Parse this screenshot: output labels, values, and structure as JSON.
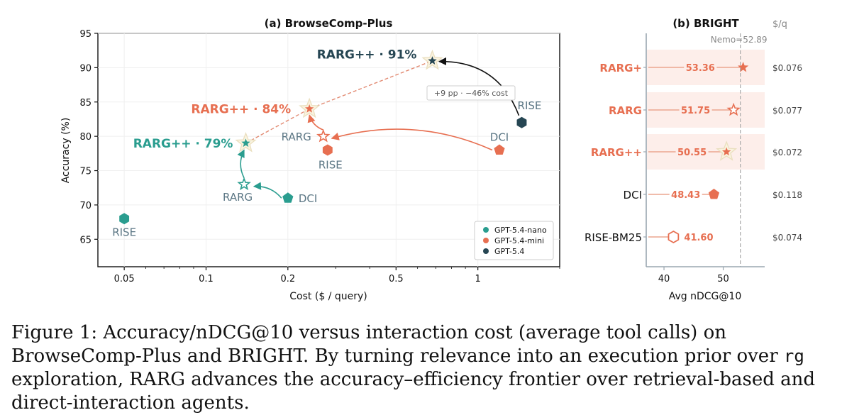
{
  "colors": {
    "nano": "#2a9d8f",
    "mini": "#e76f51",
    "full": "#264653",
    "label_gray": "#5b7684",
    "highlight_bg": "#fdeeea"
  },
  "chart_data": [
    {
      "type": "scatter",
      "title": "(a) BrowseComp-Plus",
      "xlabel": "Cost ($ / query)",
      "ylabel": "Accuracy (%)",
      "xscale": "log",
      "xlim": [
        0.04,
        2.0
      ],
      "ylim": [
        61,
        95
      ],
      "xticks": [
        0.05,
        0.1,
        0.2,
        0.5,
        1
      ],
      "xtick_labels": [
        "0.05",
        "0.1",
        "0.2",
        "0.5",
        "1"
      ],
      "yticks": [
        65,
        70,
        75,
        80,
        85,
        90,
        95
      ],
      "legend": {
        "placement": "lower-right",
        "entries": [
          {
            "label": "GPT-5.4-nano",
            "color": "#2a9d8f"
          },
          {
            "label": "GPT-5.4-mini",
            "color": "#e76f51"
          },
          {
            "label": "GPT-5.4",
            "color": "#264653"
          }
        ]
      },
      "points": [
        {
          "group": "nano",
          "method": "RISE",
          "x": 0.05,
          "y": 68,
          "marker": "hexagon",
          "label": "RISE",
          "color": "#2a9d8f"
        },
        {
          "group": "nano",
          "method": "DCI",
          "x": 0.2,
          "y": 71,
          "marker": "pentagon",
          "label": "DCI",
          "color": "#2a9d8f"
        },
        {
          "group": "nano",
          "method": "RARG",
          "x": 0.138,
          "y": 73,
          "marker": "star-open",
          "label": "RARG",
          "color": "#2a9d8f"
        },
        {
          "group": "nano",
          "method": "RARG++",
          "x": 0.14,
          "y": 79,
          "marker": "star-halo",
          "label": "RARG++ · 79%",
          "color": "#2a9d8f"
        },
        {
          "group": "mini",
          "method": "RISE",
          "x": 0.28,
          "y": 78,
          "marker": "hexagon",
          "label": "RISE",
          "color": "#e76f51"
        },
        {
          "group": "mini",
          "method": "DCI",
          "x": 1.2,
          "y": 78,
          "marker": "pentagon",
          "label": "DCI",
          "color": "#e76f51"
        },
        {
          "group": "mini",
          "method": "RARG",
          "x": 0.27,
          "y": 80,
          "marker": "star-open",
          "label": "RARG",
          "color": "#e76f51"
        },
        {
          "group": "mini",
          "method": "RARG++",
          "x": 0.24,
          "y": 84,
          "marker": "star-halo",
          "label": "RARG++ · 84%",
          "color": "#e76f51"
        },
        {
          "group": "full",
          "method": "RISE",
          "x": 1.45,
          "y": 82,
          "marker": "hexagon",
          "label": "RISE",
          "color": "#264653"
        },
        {
          "group": "full",
          "method": "RARG++",
          "x": 0.68,
          "y": 91,
          "marker": "star-halo",
          "label": "RARG++ · 91%",
          "color": "#264653"
        }
      ],
      "frontier": [
        [
          0.14,
          79
        ],
        [
          0.24,
          84
        ],
        [
          0.68,
          91
        ]
      ],
      "arrows": [
        {
          "from": [
            0.2,
            71
          ],
          "to": [
            0.15,
            72.7
          ],
          "color": "#2a9d8f"
        },
        {
          "from": [
            0.138,
            73
          ],
          "to": [
            0.138,
            78
          ],
          "color": "#2a9d8f"
        },
        {
          "from": [
            1.2,
            78
          ],
          "to": [
            0.29,
            79.7
          ],
          "color": "#e76f51"
        },
        {
          "from": [
            0.27,
            80
          ],
          "to": [
            0.24,
            83.1
          ],
          "color": "#e76f51"
        },
        {
          "from": [
            1.45,
            82
          ],
          "to": [
            0.72,
            90.9
          ],
          "color": "#111111"
        }
      ],
      "annotation": "+9 pp · −46% cost"
    },
    {
      "type": "dot",
      "title": "(b) BRIGHT",
      "xlabel": "Avg nDCG@10",
      "xlim": [
        37,
        57
      ],
      "xticks": [
        40,
        50
      ],
      "side_header": "$/q",
      "reference": {
        "label": "Nemo=52.89",
        "value": 52.89
      },
      "rows": [
        {
          "method": "RARG+",
          "value": 53.36,
          "value_label": "53.36",
          "cost": "$0.076",
          "marker": "star",
          "highlight": true
        },
        {
          "method": "RARG",
          "value": 51.75,
          "value_label": "51.75",
          "cost": "$0.077",
          "marker": "star-open",
          "highlight": true
        },
        {
          "method": "RARG++",
          "value": 50.55,
          "value_label": "50.55",
          "cost": "$0.072",
          "marker": "star-halo",
          "highlight": true
        },
        {
          "method": "DCI",
          "value": 48.43,
          "value_label": "48.43",
          "cost": "$0.118",
          "marker": "pentagon",
          "highlight": false
        },
        {
          "method": "RISE-BM25",
          "value": 41.6,
          "value_label": "41.60",
          "cost": "$0.074",
          "marker": "hexagon-open",
          "highlight": false
        }
      ]
    }
  ],
  "caption": {
    "part1": "Figure 1: Accuracy/nDCG@10 versus interaction cost (average tool calls) on BrowseComp-Plus and BRIGHT. By turning relevance into an execution prior over ",
    "code": "rg",
    "part2": " exploration, RARG advances the accuracy–efficiency frontier over retrieval-based and direct-interaction agents."
  }
}
